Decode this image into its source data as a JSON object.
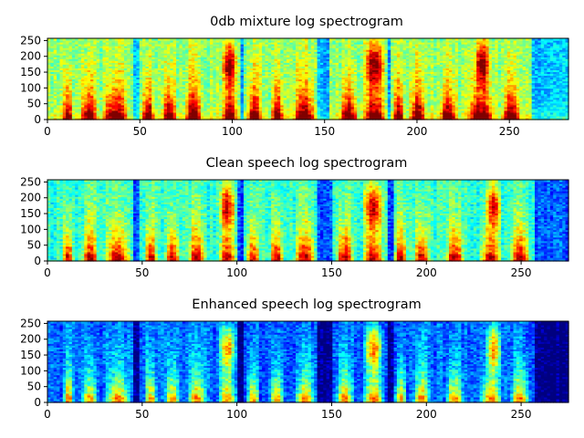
{
  "chart_data": [
    {
      "type": "heatmap",
      "title": "0db mixture log spectrogram",
      "xlabel": "",
      "ylabel": "",
      "xlim": [
        0,
        282
      ],
      "ylim": [
        0,
        257
      ],
      "x_ticks": [
        0,
        50,
        100,
        150,
        200,
        250
      ],
      "y_ticks": [
        0,
        50,
        100,
        150,
        200,
        250
      ],
      "colormap": "jet",
      "noise_floor": 0.52,
      "speech_segments": [
        [
          8,
          14
        ],
        [
          18,
          27
        ],
        [
          30,
          44
        ],
        [
          51,
          58
        ],
        [
          62,
          70
        ],
        [
          74,
          84
        ],
        [
          94,
          103
        ],
        [
          108,
          116
        ],
        [
          121,
          128
        ],
        [
          133,
          145
        ],
        [
          158,
          168
        ],
        [
          171,
          183
        ],
        [
          187,
          193
        ],
        [
          196,
          205
        ],
        [
          212,
          222
        ],
        [
          227,
          242
        ],
        [
          246,
          256
        ]
      ],
      "high_freq_bursts": [
        [
          94,
          103
        ],
        [
          171,
          183
        ],
        [
          231,
          240
        ]
      ],
      "silence_gaps": [
        [
          47,
          49
        ],
        [
          104,
          106
        ],
        [
          146,
          152
        ],
        [
          184,
          186
        ],
        [
          262,
          282
        ]
      ]
    },
    {
      "type": "heatmap",
      "title": "Clean speech log spectrogram",
      "xlabel": "",
      "ylabel": "",
      "xlim": [
        0,
        275
      ],
      "ylim": [
        0,
        257
      ],
      "x_ticks": [
        0,
        50,
        100,
        150,
        200,
        250
      ],
      "y_ticks": [
        0,
        50,
        100,
        150,
        200,
        250
      ],
      "colormap": "jet",
      "noise_floor": 0.42,
      "speech_segments": [
        [
          8,
          14
        ],
        [
          18,
          27
        ],
        [
          30,
          44
        ],
        [
          51,
          58
        ],
        [
          62,
          70
        ],
        [
          74,
          84
        ],
        [
          90,
          100
        ],
        [
          105,
          112
        ],
        [
          117,
          125
        ],
        [
          130,
          142
        ],
        [
          152,
          162
        ],
        [
          166,
          178
        ],
        [
          183,
          190
        ],
        [
          193,
          202
        ],
        [
          210,
          220
        ],
        [
          228,
          240
        ],
        [
          244,
          255
        ]
      ],
      "high_freq_bursts": [
        [
          90,
          100
        ],
        [
          166,
          178
        ],
        [
          231,
          240
        ]
      ],
      "silence_gaps": [
        [
          46,
          48
        ],
        [
          101,
          103
        ],
        [
          143,
          150
        ],
        [
          179,
          182
        ],
        [
          257,
          275
        ]
      ]
    },
    {
      "type": "heatmap",
      "title": "Enhanced speech log spectrogram",
      "xlabel": "",
      "ylabel": "",
      "xlim": [
        0,
        275
      ],
      "ylim": [
        0,
        257
      ],
      "x_ticks": [
        0,
        50,
        100,
        150,
        200,
        250
      ],
      "y_ticks": [
        0,
        50,
        100,
        150,
        200,
        250
      ],
      "colormap": "jet",
      "noise_floor": 0.22,
      "speech_segments": [
        [
          8,
          14
        ],
        [
          18,
          27
        ],
        [
          30,
          44
        ],
        [
          51,
          58
        ],
        [
          62,
          70
        ],
        [
          74,
          84
        ],
        [
          90,
          100
        ],
        [
          105,
          112
        ],
        [
          117,
          125
        ],
        [
          130,
          142
        ],
        [
          152,
          162
        ],
        [
          166,
          178
        ],
        [
          183,
          190
        ],
        [
          193,
          202
        ],
        [
          210,
          220
        ],
        [
          228,
          240
        ],
        [
          244,
          255
        ]
      ],
      "high_freq_bursts": [
        [
          90,
          100
        ],
        [
          166,
          178
        ],
        [
          231,
          240
        ]
      ],
      "silence_gaps": [
        [
          46,
          48
        ],
        [
          101,
          103
        ],
        [
          143,
          150
        ],
        [
          179,
          182
        ],
        [
          257,
          275
        ]
      ]
    }
  ]
}
